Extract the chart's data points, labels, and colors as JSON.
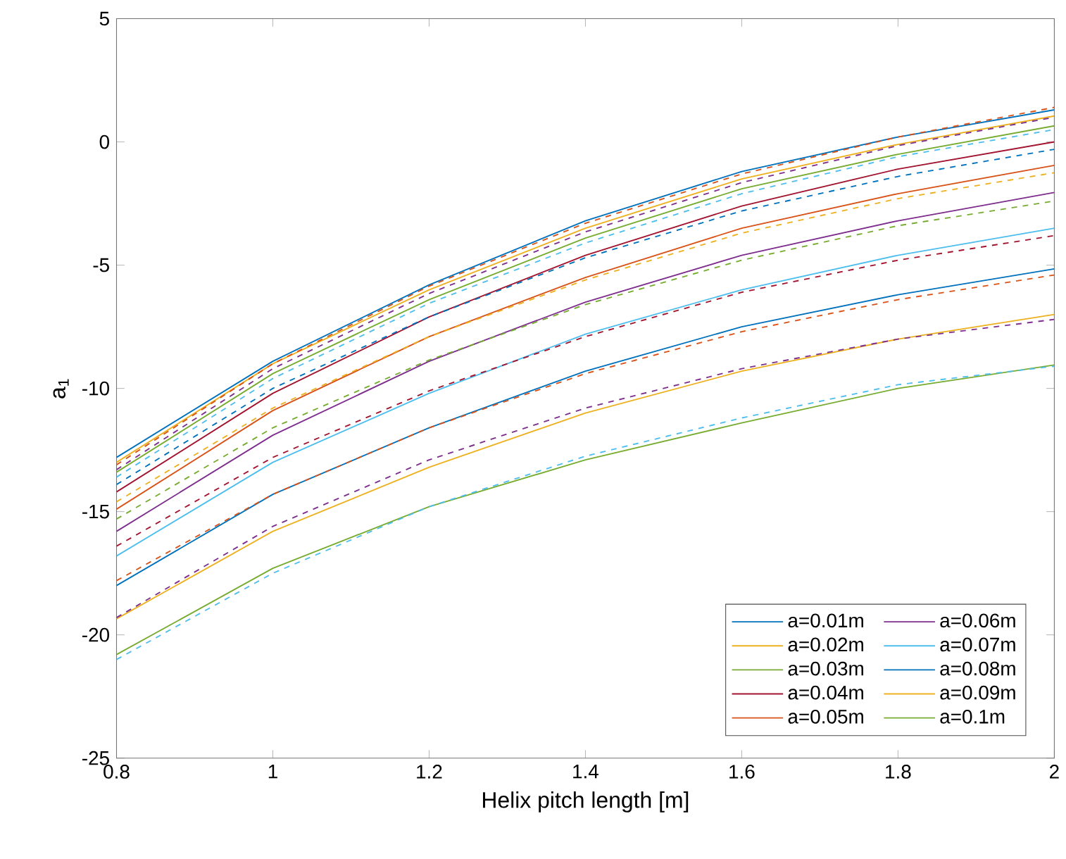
{
  "chart_data": {
    "type": "line",
    "xlabel": "Helix pitch length [m]",
    "ylabel": "a$_{1}$",
    "x": [
      0.8,
      1.0,
      1.2,
      1.4,
      1.6,
      1.8,
      2.0
    ],
    "xlim": [
      0.8,
      2
    ],
    "xticks": [
      0.8,
      1,
      1.2,
      1.4,
      1.6,
      1.8,
      2
    ],
    "ylim": [
      -25,
      5
    ],
    "yticks": [
      -25,
      -20,
      -15,
      -10,
      -5,
      0,
      5
    ],
    "grid": false,
    "legend": "bottom right",
    "series": [
      {
        "name": "a=0.01m",
        "color": "#0072bd",
        "line_style": "solid",
        "values": [
          -12.8,
          -8.9,
          -5.8,
          -3.2,
          -1.2,
          0.2,
          1.3
        ]
      },
      {
        "name": "a=0.02m",
        "color": "#edb120",
        "line_style": "solid",
        "values": [
          -13.0,
          -9.0,
          -6.0,
          -3.5,
          -1.5,
          -0.1,
          1.05
        ]
      },
      {
        "name": "a=0.03m",
        "color": "#77ac30",
        "line_style": "solid",
        "values": [
          -13.4,
          -9.4,
          -6.4,
          -3.9,
          -1.9,
          -0.5,
          0.65
        ]
      },
      {
        "name": "a=0.04m",
        "color": "#a2142f",
        "line_style": "solid",
        "values": [
          -14.2,
          -10.2,
          -7.1,
          -4.6,
          -2.6,
          -1.1,
          0.0
        ]
      },
      {
        "name": "a=0.05m",
        "color": "#d95319",
        "line_style": "solid",
        "values": [
          -14.9,
          -10.9,
          -7.9,
          -5.5,
          -3.5,
          -2.1,
          -0.95
        ]
      },
      {
        "name": "a=0.06m",
        "color": "#7e2f8e",
        "line_style": "solid",
        "values": [
          -15.8,
          -11.9,
          -8.9,
          -6.5,
          -4.6,
          -3.2,
          -2.05
        ]
      },
      {
        "name": "a=0.07m",
        "color": "#4dbeee",
        "line_style": "solid",
        "values": [
          -16.8,
          -13.0,
          -10.2,
          -7.8,
          -6.0,
          -4.6,
          -3.5
        ]
      },
      {
        "name": "a=0.08m",
        "color": "#0072bd",
        "line_style": "solid",
        "values": [
          -18.0,
          -14.3,
          -11.6,
          -9.3,
          -7.5,
          -6.2,
          -5.15
        ]
      },
      {
        "name": "a=0.09m",
        "color": "#edb120",
        "line_style": "solid",
        "values": [
          -19.35,
          -15.8,
          -13.2,
          -11.0,
          -9.3,
          -8.0,
          -7.0
        ]
      },
      {
        "name": "a=0.1m",
        "color": "#77ac30",
        "line_style": "solid",
        "values": [
          -20.8,
          -17.3,
          -14.8,
          -12.9,
          -11.4,
          -10.0,
          -9.05
        ]
      },
      {
        "color": "#d95319",
        "line_style": "dashed",
        "values": [
          -13.1,
          -9.0,
          -5.85,
          -3.3,
          -1.3,
          0.2,
          1.4
        ]
      },
      {
        "color": "#7e2f8e",
        "line_style": "dashed",
        "values": [
          -13.3,
          -9.2,
          -6.15,
          -3.65,
          -1.65,
          -0.15,
          1.0
        ]
      },
      {
        "color": "#4dbeee",
        "line_style": "dashed",
        "values": [
          -13.6,
          -9.6,
          -6.55,
          -4.1,
          -2.1,
          -0.6,
          0.5
        ]
      },
      {
        "color": "#0072bd",
        "line_style": "dashed",
        "values": [
          -13.9,
          -10.0,
          -7.1,
          -4.7,
          -2.8,
          -1.4,
          -0.3
        ]
      },
      {
        "color": "#edb120",
        "line_style": "dashed",
        "values": [
          -14.6,
          -10.8,
          -7.9,
          -5.6,
          -3.7,
          -2.3,
          -1.25
        ]
      },
      {
        "color": "#77ac30",
        "line_style": "dashed",
        "values": [
          -15.3,
          -11.6,
          -8.85,
          -6.6,
          -4.8,
          -3.4,
          -2.4
        ]
      },
      {
        "color": "#a2142f",
        "line_style": "dashed",
        "values": [
          -16.4,
          -12.8,
          -10.1,
          -7.9,
          -6.1,
          -4.8,
          -3.8
        ]
      },
      {
        "color": "#d95319",
        "line_style": "dashed",
        "values": [
          -17.8,
          -14.3,
          -11.6,
          -9.4,
          -7.7,
          -6.4,
          -5.4
        ]
      },
      {
        "color": "#7e2f8e",
        "line_style": "dashed",
        "values": [
          -19.3,
          -15.6,
          -12.9,
          -10.8,
          -9.2,
          -8.0,
          -7.2
        ]
      },
      {
        "color": "#4dbeee",
        "line_style": "dashed",
        "values": [
          -21.0,
          -17.5,
          -14.8,
          -12.75,
          -11.2,
          -9.85,
          -9.1
        ]
      }
    ]
  }
}
